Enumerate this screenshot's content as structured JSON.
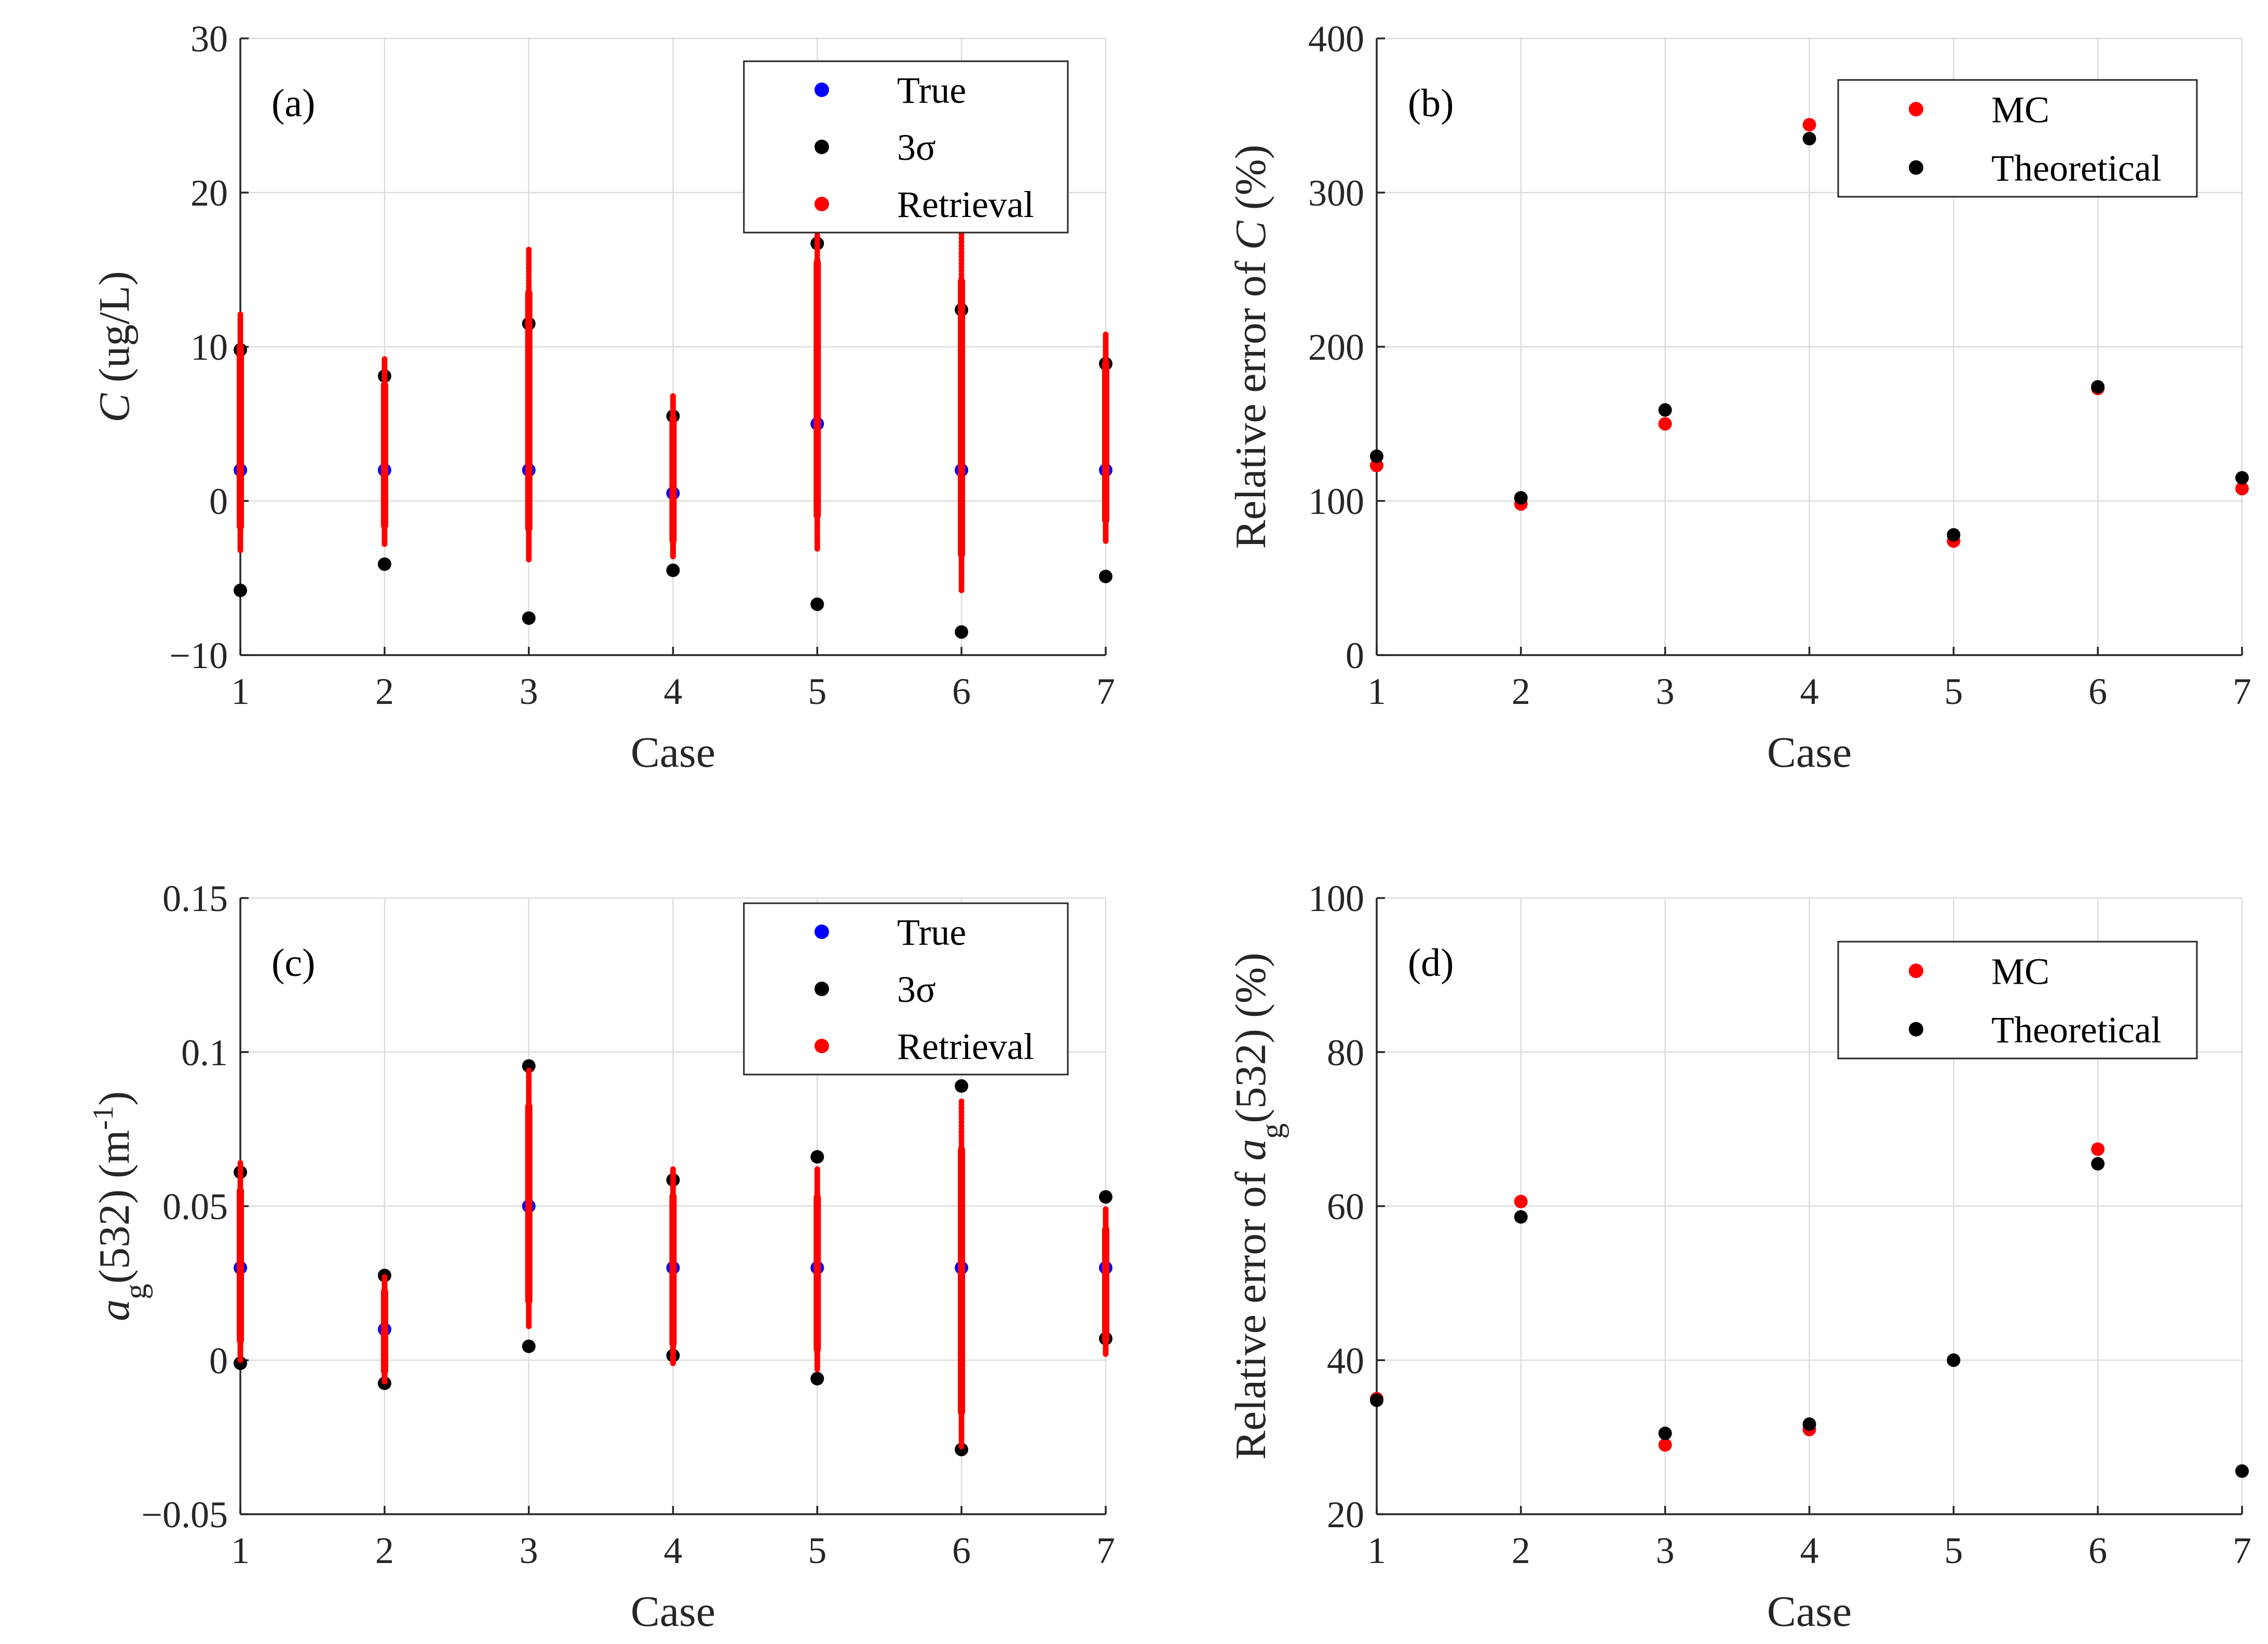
{
  "colors": {
    "true": "#0000ff",
    "sigma": "#000000",
    "retrieval": "#ff0000",
    "mc": "#ff0000",
    "theoretical": "#000000"
  },
  "chart_data": [
    {
      "id": "a",
      "type": "scatter",
      "panel_label": "(a)",
      "xlabel": "Case",
      "ylabel": {
        "italic": "C",
        "rest": " (ug/L)"
      },
      "xlim": [
        1,
        7
      ],
      "ylim": [
        -10,
        30
      ],
      "xticks": [
        "1",
        "2",
        "3",
        "4",
        "5",
        "6",
        "7"
      ],
      "yticks": [
        {
          "v": -10,
          "label": "−10"
        },
        {
          "v": 0,
          "label": "0"
        },
        {
          "v": 10,
          "label": "10"
        },
        {
          "v": 20,
          "label": "20"
        },
        {
          "v": 30,
          "label": "30"
        }
      ],
      "grid": true,
      "legend": [
        "True",
        "3σ",
        "Retrieval"
      ],
      "legend_position": "top-right",
      "series": [
        {
          "name": "True",
          "color": "#0000ff",
          "x": [
            1,
            2,
            3,
            4,
            5,
            6,
            7
          ],
          "y": [
            2,
            2,
            2,
            0.5,
            5,
            2,
            2
          ]
        },
        {
          "name": "3σ",
          "color": "#000000",
          "points": [
            [
              1,
              9.8
            ],
            [
              1,
              -5.8
            ],
            [
              2,
              8.1
            ],
            [
              2,
              -4.1
            ],
            [
              3,
              11.5
            ],
            [
              3,
              -7.6
            ],
            [
              4,
              5.5
            ],
            [
              4,
              -4.5
            ],
            [
              5,
              16.7
            ],
            [
              5,
              -6.7
            ],
            [
              6,
              12.4
            ],
            [
              6,
              -8.5
            ],
            [
              7,
              8.9
            ],
            [
              7,
              -4.9
            ]
          ]
        },
        {
          "name": "Retrieval",
          "color": "#ff0000",
          "ranges": [
            {
              "x": 1,
              "lo": -3.2,
              "hi": 12.1
            },
            {
              "x": 2,
              "lo": -2.8,
              "hi": 9.2
            },
            {
              "x": 3,
              "lo": -3.8,
              "hi": 16.3
            },
            {
              "x": 4,
              "lo": -3.6,
              "hi": 6.8
            },
            {
              "x": 5,
              "lo": -3.1,
              "hi": 18.5
            },
            {
              "x": 6,
              "lo": -5.8,
              "hi": 17.5
            },
            {
              "x": 7,
              "lo": -2.6,
              "hi": 10.8
            }
          ]
        }
      ]
    },
    {
      "id": "b",
      "type": "scatter",
      "panel_label": "(b)",
      "xlabel": "Case",
      "ylabel": {
        "pre": "Relative error of ",
        "italic": "C",
        "rest": " (%)"
      },
      "xlim": [
        1,
        7
      ],
      "ylim": [
        0,
        400
      ],
      "xticks": [
        "1",
        "2",
        "3",
        "4",
        "5",
        "6",
        "7"
      ],
      "yticks": [
        {
          "v": 0,
          "label": "0"
        },
        {
          "v": 100,
          "label": "100"
        },
        {
          "v": 200,
          "label": "200"
        },
        {
          "v": 300,
          "label": "300"
        },
        {
          "v": 400,
          "label": "400"
        }
      ],
      "grid": true,
      "legend": [
        "MC",
        "Theoretical"
      ],
      "legend_position": "top-right",
      "series": [
        {
          "name": "MC",
          "color": "#ff0000",
          "x": [
            1,
            2,
            3,
            4,
            5,
            6,
            7
          ],
          "y": [
            123,
            98,
            150,
            344,
            74,
            173,
            108
          ]
        },
        {
          "name": "Theoretical",
          "color": "#000000",
          "x": [
            1,
            2,
            3,
            4,
            5,
            6,
            7
          ],
          "y": [
            129,
            102,
            159,
            335,
            78,
            174,
            115
          ]
        }
      ]
    },
    {
      "id": "c",
      "type": "scatter",
      "panel_label": "(c)",
      "xlabel": "Case",
      "ylabel": {
        "italic": "a",
        "sub": "g",
        "rest": "(532) (m",
        "sup": "-1",
        "end": ")"
      },
      "xlim": [
        1,
        7
      ],
      "ylim": [
        -0.05,
        0.15
      ],
      "xticks": [
        "1",
        "2",
        "3",
        "4",
        "5",
        "6",
        "7"
      ],
      "yticks": [
        {
          "v": -0.05,
          "label": "−0.05"
        },
        {
          "v": 0,
          "label": "0"
        },
        {
          "v": 0.05,
          "label": "0.05"
        },
        {
          "v": 0.1,
          "label": "0.1"
        },
        {
          "v": 0.15,
          "label": "0.15"
        }
      ],
      "grid": true,
      "legend": [
        "True",
        "3σ",
        "Retrieval"
      ],
      "legend_position": "top-right",
      "series": [
        {
          "name": "True",
          "color": "#0000ff",
          "x": [
            1,
            2,
            3,
            4,
            5,
            6,
            7
          ],
          "y": [
            0.03,
            0.01,
            0.05,
            0.03,
            0.03,
            0.03,
            0.03
          ]
        },
        {
          "name": "3σ",
          "color": "#000000",
          "points": [
            [
              1,
              0.061
            ],
            [
              1,
              -0.001
            ],
            [
              2,
              0.0275
            ],
            [
              2,
              -0.0075
            ],
            [
              3,
              0.0955
            ],
            [
              3,
              0.0045
            ],
            [
              4,
              0.0585
            ],
            [
              4,
              0.0015
            ],
            [
              5,
              0.066
            ],
            [
              5,
              -0.006
            ],
            [
              6,
              0.089
            ],
            [
              6,
              -0.029
            ],
            [
              7,
              0.053
            ],
            [
              7,
              0.007
            ]
          ]
        },
        {
          "name": "Retrieval",
          "color": "#ff0000",
          "ranges": [
            {
              "x": 1,
              "lo": 0.0,
              "hi": 0.064
            },
            {
              "x": 2,
              "lo": -0.007,
              "hi": 0.027
            },
            {
              "x": 3,
              "lo": 0.011,
              "hi": 0.094
            },
            {
              "x": 4,
              "lo": -0.001,
              "hi": 0.062
            },
            {
              "x": 5,
              "lo": -0.003,
              "hi": 0.062
            },
            {
              "x": 6,
              "lo": -0.028,
              "hi": 0.084
            },
            {
              "x": 7,
              "lo": 0.002,
              "hi": 0.049
            }
          ]
        }
      ]
    },
    {
      "id": "d",
      "type": "scatter",
      "panel_label": "(d)",
      "xlabel": "Case",
      "ylabel": {
        "pre": "Relative error of ",
        "italic": "a",
        "sub": "g",
        "rest": "(532) (%)"
      },
      "xlim": [
        1,
        7
      ],
      "ylim": [
        20,
        100
      ],
      "xticks": [
        "1",
        "2",
        "3",
        "4",
        "5",
        "6",
        "7"
      ],
      "yticks": [
        {
          "v": 20,
          "label": "20"
        },
        {
          "v": 40,
          "label": "40"
        },
        {
          "v": 60,
          "label": "60"
        },
        {
          "v": 80,
          "label": "80"
        },
        {
          "v": 100,
          "label": "100"
        }
      ],
      "grid": true,
      "legend": [
        "MC",
        "Theoretical"
      ],
      "legend_position": "top-right",
      "series": [
        {
          "name": "MC",
          "color": "#ff0000",
          "x": [
            1,
            2,
            3,
            4,
            5,
            6,
            7
          ],
          "y": [
            35,
            60.6,
            29,
            31,
            40,
            67.4,
            25.6
          ]
        },
        {
          "name": "Theoretical",
          "color": "#000000",
          "x": [
            1,
            2,
            3,
            4,
            5,
            6,
            7
          ],
          "y": [
            34.8,
            58.6,
            30.5,
            31.7,
            40,
            65.5,
            25.6
          ]
        }
      ]
    }
  ]
}
